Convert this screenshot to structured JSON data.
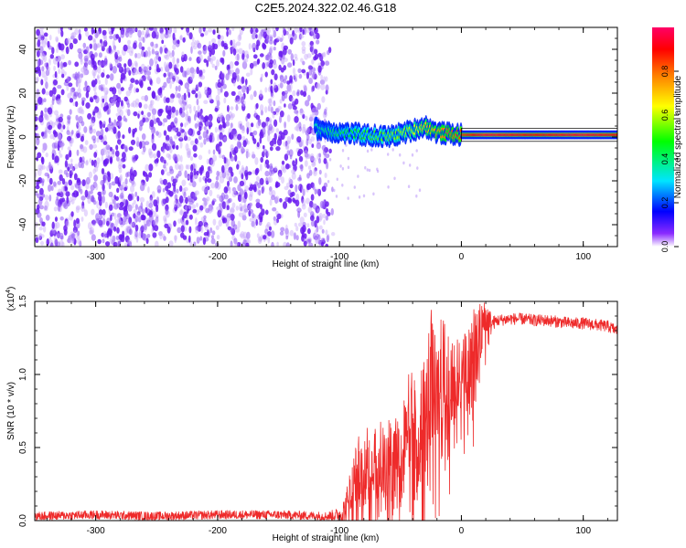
{
  "title": "C2E5.2024.322.02.46.G18",
  "colors": {
    "snr_line": "#ee2a2a",
    "colormap": [
      "#ffffff",
      "#6a00ff",
      "#0000ff",
      "#00ffff",
      "#00ff00",
      "#ffff00",
      "#ff8000",
      "#ff0000",
      "#ff0066"
    ]
  },
  "colorbar": {
    "label": "Normalized spectral amplitude",
    "range": [
      0,
      1
    ],
    "ticks": [
      "0.0",
      "0.2",
      "0.4",
      "0.6",
      "0.8"
    ]
  },
  "chart_data": [
    {
      "type": "heatmap",
      "xlabel": "Height of straight line (km)",
      "ylabel": "Frequency (Hz)",
      "xlim": [
        -350,
        128
      ],
      "ylim": [
        -50,
        50
      ],
      "xticks": [
        "-300",
        "-200",
        "-100",
        "0",
        "100"
      ],
      "yticks": [
        "-40",
        "-20",
        "0",
        "20",
        "40"
      ],
      "grid": false,
      "regions": [
        {
          "name": "noise",
          "x": [
            -350,
            -110
          ],
          "frequency": [
            -50,
            50
          ],
          "amplitude": [
            0.0,
            0.15
          ]
        },
        {
          "name": "signal band",
          "x": [
            -120,
            128
          ],
          "frequency": [
            0,
            5
          ],
          "amplitude": [
            0.3,
            1.0
          ]
        }
      ],
      "signal_ridge": {
        "x": [
          -120,
          -100,
          -80,
          -60,
          -40,
          -30,
          -20,
          0,
          20,
          60,
          100,
          128
        ],
        "frequency": [
          4,
          2,
          1,
          0,
          3,
          5,
          2,
          1,
          1,
          1,
          1,
          1
        ],
        "amplitude": [
          0.35,
          0.45,
          0.5,
          0.55,
          0.6,
          0.7,
          0.75,
          0.85,
          0.95,
          0.9,
          0.95,
          0.9
        ]
      }
    },
    {
      "type": "line",
      "xlabel": "Height of straight line (km)",
      "ylabel": "SNR (10 * v/v)",
      "multiplier": "(x10",
      "multiplier_exp": "4",
      "xlim": [
        -350,
        128
      ],
      "ylim": [
        0,
        1.5
      ],
      "xticks": [
        "-300",
        "-200",
        "-100",
        "0",
        "100"
      ],
      "yticks": [
        "0.0",
        "0.5",
        "1.0",
        "1.5"
      ],
      "grid": false,
      "series": [
        {
          "x": [
            -350,
            -300,
            -250,
            -200,
            -150,
            -110,
            -100,
            -95,
            -90,
            -85,
            -80,
            -75,
            -70,
            -65,
            -60,
            -55,
            -50,
            -45,
            -40,
            -35,
            -30,
            -25,
            -20,
            -15,
            -10,
            -5,
            0,
            5,
            10,
            15,
            20,
            25,
            30,
            40,
            50,
            60,
            70,
            80,
            90,
            100,
            110,
            120,
            128
          ],
          "y": [
            0.03,
            0.04,
            0.03,
            0.04,
            0.04,
            0.03,
            0.04,
            0.07,
            0.14,
            0.25,
            0.22,
            0.3,
            0.26,
            0.35,
            0.3,
            0.4,
            0.32,
            0.45,
            0.5,
            0.45,
            0.55,
            0.75,
            0.62,
            0.8,
            0.75,
            0.82,
            0.9,
            0.95,
            1.0,
            1.15,
            1.32,
            1.35,
            1.37,
            1.38,
            1.38,
            1.37,
            1.37,
            1.36,
            1.35,
            1.35,
            1.34,
            1.33,
            1.3
          ],
          "y_spread": [
            0.03,
            0.03,
            0.03,
            0.03,
            0.03,
            0.03,
            0.05,
            0.12,
            0.3,
            0.35,
            0.35,
            0.4,
            0.4,
            0.35,
            0.45,
            0.45,
            0.5,
            0.55,
            0.6,
            0.6,
            0.7,
            0.75,
            0.7,
            0.65,
            0.6,
            0.45,
            0.4,
            0.55,
            0.5,
            0.35,
            0.25,
            0.05,
            0.04,
            0.04,
            0.04,
            0.04,
            0.04,
            0.04,
            0.04,
            0.04,
            0.04,
            0.04,
            0.04
          ]
        }
      ]
    }
  ]
}
